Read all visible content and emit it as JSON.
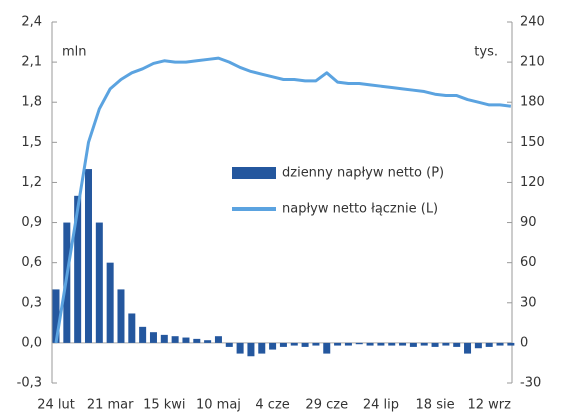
{
  "chart_data": {
    "type": "bar_line",
    "ylabel": "mln",
    "y2label": "tys.",
    "categories": [
      "24 lut",
      null,
      null,
      null,
      null,
      "21 mar",
      null,
      null,
      null,
      null,
      "15 kwi",
      null,
      null,
      null,
      null,
      "10 maj",
      null,
      null,
      null,
      null,
      "4 cze",
      null,
      null,
      null,
      null,
      "29 cze",
      null,
      null,
      null,
      null,
      "24 lip",
      null,
      null,
      null,
      null,
      "18 sie",
      null,
      null,
      null,
      null,
      "12 wrz",
      null,
      null
    ],
    "series": [
      {
        "name": "dzienny napływ netto (P)",
        "type": "bar",
        "axis": "y2",
        "color": "#24579e",
        "values": [
          40,
          90,
          110,
          130,
          90,
          60,
          40,
          22,
          12,
          8,
          6,
          5,
          4,
          3,
          2,
          5,
          -3,
          -8,
          -10,
          -8,
          -5,
          -3,
          -2,
          -3,
          -2,
          -8,
          -2,
          -2,
          -1,
          -2,
          -2,
          -2,
          -2,
          -3,
          -2,
          -3,
          -2,
          -3,
          -8,
          -4,
          -3,
          -2,
          -2
        ]
      },
      {
        "name": "napływ netto łącznie (L)",
        "type": "line",
        "axis": "y",
        "color": "#5ba3e0",
        "values": [
          0.0,
          0.5,
          1.0,
          1.5,
          1.75,
          1.9,
          1.97,
          2.02,
          2.05,
          2.09,
          2.11,
          2.1,
          2.1,
          2.11,
          2.12,
          2.13,
          2.1,
          2.06,
          2.03,
          2.01,
          1.99,
          1.97,
          1.97,
          1.96,
          1.96,
          2.02,
          1.95,
          1.94,
          1.94,
          1.93,
          1.92,
          1.91,
          1.9,
          1.89,
          1.88,
          1.86,
          1.85,
          1.85,
          1.82,
          1.8,
          1.78,
          1.78,
          1.77
        ]
      }
    ],
    "ylim": [
      -0.3,
      2.4
    ],
    "yticks": [
      {
        "value": -0.3,
        "label": "-0,3"
      },
      {
        "value": 0,
        "label": "0,0"
      },
      {
        "value": 0.3,
        "label": "0,3"
      },
      {
        "value": 0.6,
        "label": "0,6"
      },
      {
        "value": 0.9,
        "label": "0,9"
      },
      {
        "value": 1.2,
        "label": "1,2"
      },
      {
        "value": 1.5,
        "label": "1,5"
      },
      {
        "value": 1.8,
        "label": "1,8"
      },
      {
        "value": 2.1,
        "label": "2,1"
      },
      {
        "value": 2.4,
        "label": "2,4"
      }
    ],
    "y2lim": [
      -30,
      240
    ],
    "y2ticks": [
      -30,
      0,
      30,
      60,
      90,
      120,
      150,
      180,
      210,
      240
    ]
  }
}
